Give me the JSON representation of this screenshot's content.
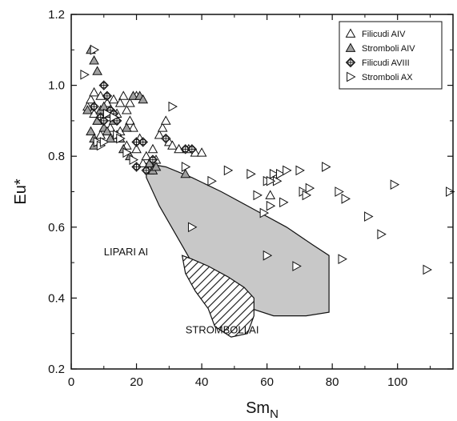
{
  "chart_data": {
    "type": "scatter",
    "xlabel": "Sm",
    "xlabel_sub": "N",
    "ylabel": "Eu*",
    "xlim": [
      0,
      117
    ],
    "ylim": [
      0.2,
      1.2
    ],
    "x_ticks": [
      0,
      20,
      40,
      60,
      80,
      100
    ],
    "y_ticks": [
      0.2,
      0.4,
      0.6,
      0.8,
      1.0,
      1.2
    ],
    "x_tick_labels": [
      "0",
      "20",
      "40",
      "60",
      "80",
      "100"
    ],
    "y_tick_labels": [
      "0.2",
      "0.4",
      "0.6",
      "0.8",
      "1.0",
      "1.2"
    ],
    "grid": false,
    "legend_position": "top-right",
    "regions": [
      {
        "name": "LIPARI AI",
        "fill": "#c8c8c8",
        "hatched": false,
        "polygon": [
          [
            23,
            0.78
          ],
          [
            29,
            0.77
          ],
          [
            37,
            0.74
          ],
          [
            46,
            0.7
          ],
          [
            56,
            0.65
          ],
          [
            66,
            0.6
          ],
          [
            74,
            0.55
          ],
          [
            79,
            0.52
          ],
          [
            79,
            0.36
          ],
          [
            72,
            0.35
          ],
          [
            62,
            0.35
          ],
          [
            52,
            0.38
          ],
          [
            44,
            0.44
          ],
          [
            37,
            0.5
          ],
          [
            32,
            0.58
          ],
          [
            27,
            0.66
          ],
          [
            23,
            0.74
          ]
        ]
      },
      {
        "name": "STROMBOLI AI",
        "fill": "#ffffff",
        "hatched": true,
        "polygon": [
          [
            34,
            0.52
          ],
          [
            37,
            0.51
          ],
          [
            42,
            0.49
          ],
          [
            48,
            0.46
          ],
          [
            53,
            0.43
          ],
          [
            56,
            0.4
          ],
          [
            56,
            0.35
          ],
          [
            54,
            0.3
          ],
          [
            49,
            0.29
          ],
          [
            44,
            0.32
          ],
          [
            42,
            0.37
          ],
          [
            38,
            0.42
          ],
          [
            35,
            0.47
          ]
        ]
      }
    ],
    "series": [
      {
        "name": "Filicudi AIV",
        "marker": "triangle-up",
        "fill": "#ffffff",
        "points": [
          [
            5,
            0.94
          ],
          [
            6,
            0.96
          ],
          [
            7,
            0.98
          ],
          [
            8,
            0.9
          ],
          [
            9,
            0.97
          ],
          [
            10,
            0.93
          ],
          [
            11,
            0.95
          ],
          [
            12,
            0.88
          ],
          [
            13,
            0.85
          ],
          [
            14,
            0.92
          ],
          [
            15,
            0.87
          ],
          [
            16,
            0.97
          ],
          [
            17,
            0.93
          ],
          [
            18,
            0.9
          ],
          [
            19,
            0.88
          ],
          [
            20,
            0.82
          ],
          [
            21,
            0.85
          ],
          [
            22,
            0.78
          ],
          [
            23,
            0.8
          ],
          [
            25,
            0.82
          ],
          [
            26,
            0.79
          ],
          [
            27,
            0.86
          ],
          [
            28,
            0.88
          ],
          [
            29,
            0.9
          ],
          [
            30,
            0.84
          ],
          [
            31,
            0.83
          ],
          [
            33,
            0.82
          ],
          [
            36,
            0.82
          ],
          [
            38,
            0.81
          ],
          [
            40,
            0.81
          ],
          [
            61,
            0.69
          ],
          [
            7,
            0.92
          ],
          [
            9,
            0.86
          ],
          [
            11,
            0.91
          ],
          [
            13,
            0.96
          ],
          [
            15,
            0.95
          ],
          [
            17,
            0.83
          ],
          [
            18,
            0.95
          ],
          [
            20,
            0.97
          ],
          [
            24,
            0.76
          ]
        ]
      },
      {
        "name": "Stromboli AIV",
        "marker": "triangle-up",
        "fill": "#a0a0a0",
        "points": [
          [
            6,
            1.1
          ],
          [
            7,
            1.07
          ],
          [
            8,
            1.04
          ],
          [
            5,
            0.93
          ],
          [
            6,
            0.87
          ],
          [
            7,
            0.85
          ],
          [
            8,
            0.9
          ],
          [
            9,
            0.93
          ],
          [
            10,
            0.88
          ],
          [
            11,
            0.87
          ],
          [
            12,
            0.92
          ],
          [
            13,
            0.9
          ],
          [
            14,
            0.86
          ],
          [
            15,
            0.85
          ],
          [
            16,
            0.82
          ],
          [
            17,
            0.88
          ],
          [
            18,
            0.8
          ],
          [
            19,
            0.97
          ],
          [
            21,
            0.97
          ],
          [
            22,
            0.96
          ],
          [
            24,
            0.78
          ],
          [
            25,
            0.76
          ],
          [
            26,
            0.77
          ],
          [
            35,
            0.75
          ],
          [
            7,
            0.83
          ],
          [
            10,
            0.94
          ],
          [
            12,
            0.85
          ]
        ]
      },
      {
        "name": "Filicudi AVIII",
        "marker": "crossed-diamond",
        "fill": "#ffffff",
        "points": [
          [
            7,
            0.94
          ],
          [
            9,
            0.91
          ],
          [
            10,
            1.0
          ],
          [
            11,
            0.97
          ],
          [
            12,
            0.93
          ],
          [
            13,
            0.92
          ],
          [
            14,
            0.9
          ],
          [
            20,
            0.84
          ],
          [
            20,
            0.77
          ],
          [
            22,
            0.84
          ],
          [
            23,
            0.76
          ],
          [
            25,
            0.79
          ],
          [
            29,
            0.85
          ],
          [
            35,
            0.82
          ],
          [
            37,
            0.82
          ],
          [
            10,
            0.9
          ]
        ]
      },
      {
        "name": "Stromboli AX",
        "marker": "triangle-right",
        "fill": "#ffffff",
        "points": [
          [
            4,
            1.03
          ],
          [
            7,
            1.1
          ],
          [
            8,
            0.84
          ],
          [
            9,
            0.83
          ],
          [
            11,
            0.92
          ],
          [
            13,
            0.91
          ],
          [
            14,
            0.86
          ],
          [
            15,
            0.85
          ],
          [
            17,
            0.81
          ],
          [
            19,
            0.79
          ],
          [
            31,
            0.94
          ],
          [
            35,
            0.77
          ],
          [
            37,
            0.6
          ],
          [
            43,
            0.73
          ],
          [
            48,
            0.76
          ],
          [
            55,
            0.75
          ],
          [
            57,
            0.69
          ],
          [
            59,
            0.64
          ],
          [
            60,
            0.73
          ],
          [
            60,
            0.52
          ],
          [
            61,
            0.66
          ],
          [
            62,
            0.75
          ],
          [
            63,
            0.73
          ],
          [
            64,
            0.75
          ],
          [
            65,
            0.67
          ],
          [
            66,
            0.76
          ],
          [
            69,
            0.49
          ],
          [
            70,
            0.76
          ],
          [
            71,
            0.7
          ],
          [
            72,
            0.69
          ],
          [
            73,
            0.71
          ],
          [
            78,
            0.77
          ],
          [
            82,
            0.7
          ],
          [
            83,
            0.51
          ],
          [
            84,
            0.68
          ],
          [
            91,
            0.63
          ],
          [
            95,
            0.58
          ],
          [
            99,
            0.72
          ],
          [
            109,
            0.48
          ],
          [
            116,
            0.7
          ],
          [
            61,
            0.73
          ],
          [
            10,
            0.84
          ]
        ]
      }
    ]
  }
}
